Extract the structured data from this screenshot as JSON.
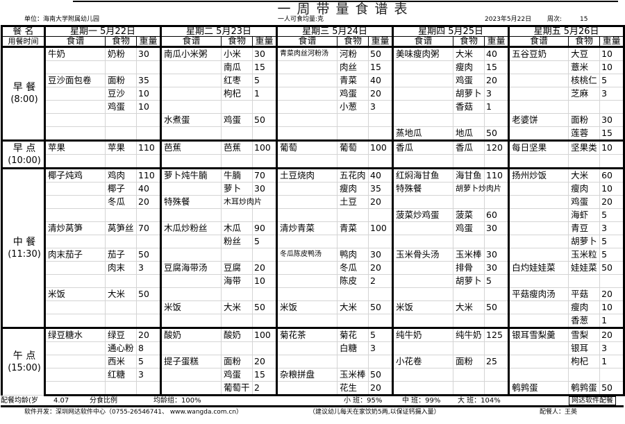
{
  "title": "一周带量食谱表",
  "unit": "单位：海南大学附属幼儿园",
  "unit_note": "一人可食均量:克",
  "date": "2023年5月22日",
  "week_label": "周次:",
  "week_no": "15",
  "header": {
    "meal_name": "餐 名",
    "meal_time": "用餐时间",
    "col_dish": "食谱",
    "col_food": "食物",
    "col_weight": "重量",
    "days": [
      "星期一 5月22日",
      "星期二 5月23日",
      "星期三 5月24日",
      "星期四 5月25日",
      "星期五 5月26日"
    ]
  },
  "meals": [
    {
      "name": "早 餐",
      "time": "(8:00)",
      "rows": [
        [
          [
            "牛奶",
            "奶粉",
            "30"
          ],
          [
            "南瓜小米粥",
            "小米",
            "30"
          ],
          [
            "青菜肉丝河粉汤",
            "河粉",
            "50"
          ],
          [
            "美味瘦肉粥",
            "大米",
            "40"
          ],
          [
            "五谷豆奶",
            "大豆",
            "10"
          ]
        ],
        [
          [
            "",
            "",
            ""
          ],
          [
            "",
            "南瓜",
            "15"
          ],
          [
            "",
            "肉丝",
            "15"
          ],
          [
            "",
            "瘦肉",
            "15"
          ],
          [
            "",
            "薏米",
            "10"
          ]
        ],
        [
          [
            "豆沙面包卷",
            "面粉",
            "35"
          ],
          [
            "",
            "红枣",
            "5"
          ],
          [
            "",
            "青菜",
            "40"
          ],
          [
            "",
            "鸡蛋",
            "20"
          ],
          [
            "",
            "核桃仁",
            "5"
          ]
        ],
        [
          [
            "",
            "豆沙",
            "10"
          ],
          [
            "",
            "枸杞",
            "1"
          ],
          [
            "",
            "鸡蛋",
            "20"
          ],
          [
            "",
            "胡萝卜",
            "3"
          ],
          [
            "",
            "芝麻",
            "3"
          ]
        ],
        [
          [
            "",
            "鸡蛋",
            "10"
          ],
          [
            "",
            "",
            ""
          ],
          [
            "",
            "小葱",
            "3"
          ],
          [
            "",
            "香菇",
            "1"
          ],
          [
            "",
            "",
            ""
          ]
        ],
        [
          [
            "",
            "",
            ""
          ],
          [
            "水煮蛋",
            "鸡蛋",
            "50"
          ],
          [
            "",
            "",
            ""
          ],
          [
            "",
            "",
            ""
          ],
          [
            "老婆饼",
            "面粉",
            "30"
          ]
        ],
        [
          [
            "",
            "",
            ""
          ],
          [
            "",
            "",
            ""
          ],
          [
            "",
            "",
            ""
          ],
          [
            "蒸地瓜",
            "地瓜",
            "50"
          ],
          [
            "",
            "莲蓉",
            "15"
          ]
        ]
      ]
    },
    {
      "name": "早 点",
      "time": "(10:00)",
      "rows": [
        [
          [
            "苹果",
            "苹果",
            "110"
          ],
          [
            "芭蕉",
            "芭蕉",
            "100"
          ],
          [
            "葡萄",
            "葡萄",
            "100"
          ],
          [
            "香瓜",
            "香瓜",
            "120"
          ],
          [
            "每日坚果",
            "坚果类",
            "10"
          ]
        ],
        [
          [
            "",
            "",
            ""
          ],
          [
            "",
            "",
            ""
          ],
          [
            "",
            "",
            ""
          ],
          [
            "",
            "",
            ""
          ],
          [
            "",
            "",
            ""
          ]
        ]
      ]
    },
    {
      "name": "中 餐",
      "time": "(11:30)",
      "rows": [
        [
          [
            "椰子炖鸡",
            "鸡肉",
            "110"
          ],
          [
            "萝卜炖牛腩",
            "牛腩",
            "70"
          ],
          [
            "土豆烧肉",
            "五花肉",
            "40"
          ],
          [
            "红焖海甘鱼",
            "海甘鱼",
            "110"
          ],
          [
            "扬州炒饭",
            "大米",
            "60"
          ]
        ],
        [
          [
            "",
            "椰子",
            "40"
          ],
          [
            "",
            "萝卜",
            "30"
          ],
          [
            "",
            "瘦肉",
            "35"
          ],
          [
            "特殊餐",
            "胡萝卜炒肉片",
            ""
          ],
          [
            "",
            "瘦肉",
            "10"
          ]
        ],
        [
          [
            "",
            "冬瓜",
            "20"
          ],
          [
            "特殊餐",
            "木耳炒肉片",
            ""
          ],
          [
            "",
            "土豆",
            "20"
          ],
          [
            "",
            "",
            ""
          ],
          [
            "",
            "鸡蛋",
            "20"
          ]
        ],
        [
          [
            "",
            "",
            ""
          ],
          [
            "",
            "",
            ""
          ],
          [
            "",
            "",
            ""
          ],
          [
            "菠菜炒鸡蛋",
            "菠菜",
            "60"
          ],
          [
            "",
            "海虾",
            "5"
          ]
        ],
        [
          [
            "清炒莴笋",
            "莴笋丝",
            "70"
          ],
          [
            "木瓜炒粉丝",
            "木瓜",
            "90"
          ],
          [
            "清炒青菜",
            "青菜",
            "100"
          ],
          [
            "",
            "鸡蛋",
            "30"
          ],
          [
            "",
            "青豆",
            "3"
          ]
        ],
        [
          [
            "",
            "",
            ""
          ],
          [
            "",
            "粉丝",
            "5"
          ],
          [
            "",
            "",
            ""
          ],
          [
            "",
            "",
            ""
          ],
          [
            "",
            "胡萝卜",
            "5"
          ]
        ],
        [
          [
            "肉末茄子",
            "茄子",
            "50"
          ],
          [
            "",
            "",
            ""
          ],
          [
            "冬瓜陈皮鸭汤",
            "鸭肉",
            "30"
          ],
          [
            "玉米骨头汤",
            "玉米棒",
            "30"
          ],
          [
            "",
            "玉米粒",
            "5"
          ]
        ],
        [
          [
            "",
            "肉末",
            "3"
          ],
          [
            "豆腐海带汤",
            "豆腐",
            "20"
          ],
          [
            "",
            "冬瓜",
            "20"
          ],
          [
            "",
            "排骨",
            "30"
          ],
          [
            "白灼娃娃菜",
            "娃娃菜",
            "50"
          ]
        ],
        [
          [
            "",
            "",
            ""
          ],
          [
            "",
            "海带",
            "10"
          ],
          [
            "",
            "陈皮",
            "2"
          ],
          [
            "",
            "胡萝卜",
            "5"
          ],
          [
            "",
            "",
            ""
          ]
        ],
        [
          [
            "米饭",
            "大米",
            "50"
          ],
          [
            "",
            "",
            ""
          ],
          [
            "",
            "",
            ""
          ],
          [
            "",
            "",
            ""
          ],
          [
            "平菇瘦肉汤",
            "平菇",
            "20"
          ]
        ],
        [
          [
            "",
            "",
            ""
          ],
          [
            "米饭",
            "大米",
            "50"
          ],
          [
            "米饭",
            "大米",
            "50"
          ],
          [
            "米饭",
            "大米",
            "50"
          ],
          [
            "",
            "瘦肉",
            "10"
          ]
        ],
        [
          [
            "",
            "",
            ""
          ],
          [
            "",
            "",
            ""
          ],
          [
            "",
            "",
            ""
          ],
          [
            "",
            "",
            ""
          ],
          [
            "",
            "香葱",
            "1"
          ]
        ]
      ]
    },
    {
      "name": "午 点",
      "time": "(15:00)",
      "rows": [
        [
          [
            "绿豆糖水",
            "绿豆",
            "20"
          ],
          [
            "酸奶",
            "酸奶",
            "100"
          ],
          [
            "菊花茶",
            "菊花",
            "5"
          ],
          [
            "纯牛奶",
            "纯牛奶",
            "125"
          ],
          [
            "银耳雪梨羹",
            "雪梨",
            "20"
          ]
        ],
        [
          [
            "",
            "通心粉",
            "8"
          ],
          [
            "",
            "",
            ""
          ],
          [
            "",
            "白糖",
            "3"
          ],
          [
            "",
            "",
            ""
          ],
          [
            "",
            "银耳",
            "3"
          ]
        ],
        [
          [
            "",
            "西米",
            "5"
          ],
          [
            "提子蛋糕",
            "面粉",
            "20"
          ],
          [
            "",
            "",
            ""
          ],
          [
            "小花卷",
            "面粉",
            "25"
          ],
          [
            "",
            "枸杞",
            "1"
          ]
        ],
        [
          [
            "",
            "红糖",
            "3"
          ],
          [
            "",
            "鸡蛋",
            "15"
          ],
          [
            "杂粮拼盘",
            "玉米棒",
            "50"
          ],
          [
            "",
            "",
            ""
          ],
          [
            "",
            "",
            ""
          ]
        ],
        [
          [
            "",
            "",
            ""
          ],
          [
            "",
            "葡萄干",
            "2"
          ],
          [
            "",
            "花生",
            "20"
          ],
          [
            "",
            "",
            ""
          ],
          [
            "鹌鹑蛋",
            "鹌鹑蛋",
            "50"
          ]
        ]
      ]
    }
  ],
  "footer": {
    "avg_age_label": "配餐均龄(岁",
    "avg_age": "4.07",
    "ratio_label": "分食比例",
    "avg_group": "均龄组：100%",
    "small_class": "小 班：95%",
    "middle_class": "中 班：99%",
    "large_class": "大 班：104%",
    "brand": "网达软件配餐"
  },
  "credits": {
    "developer": "软件开发：深圳网达软件中心（0755-26546741、 www.wangda.com.cn）",
    "advice": "（建议幼儿每天在家饮奶5两,以保证钙摄入量）",
    "planner": "配餐人：王英"
  }
}
